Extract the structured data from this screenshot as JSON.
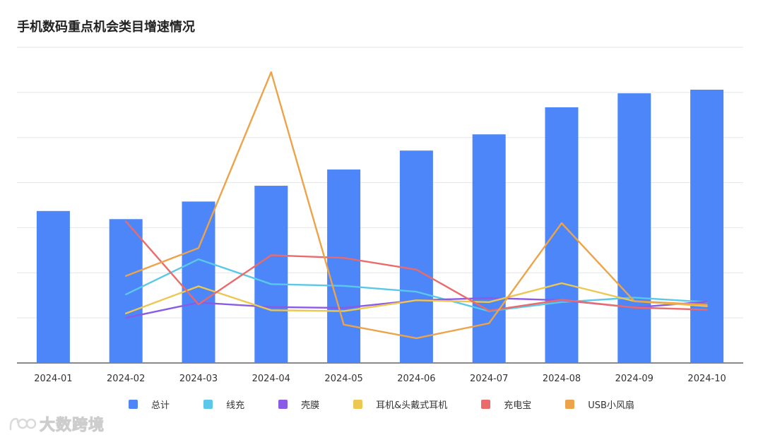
{
  "chart_data": {
    "type": "bar",
    "title": "手机数码重点机会类目增速情况",
    "categories": [
      "2024-01",
      "2024-02",
      "2024-03",
      "2024-04",
      "2024-05",
      "2024-06",
      "2024-07",
      "2024-08",
      "2024-09",
      "2024-10"
    ],
    "ylim": [
      0,
      7
    ],
    "grid": true,
    "y_tick_labels_shown": false,
    "legend_position": "bottom",
    "series": [
      {
        "name": "总计",
        "type": "bar",
        "color": "#4C86F8",
        "values": [
          3.37,
          3.19,
          3.58,
          3.93,
          4.29,
          4.71,
          5.07,
          5.67,
          5.98,
          6.06
        ]
      },
      {
        "name": "线充",
        "type": "line",
        "color": "#5BC8EA",
        "values": [
          null,
          1.52,
          2.3,
          1.75,
          1.71,
          1.58,
          1.15,
          1.35,
          1.45,
          1.35
        ]
      },
      {
        "name": "壳膜",
        "type": "line",
        "color": "#8A5CE6",
        "values": [
          null,
          1.0,
          1.34,
          1.24,
          1.22,
          1.39,
          1.44,
          1.39,
          1.23,
          1.36
        ]
      },
      {
        "name": "耳机&头戴式耳机",
        "type": "line",
        "color": "#ECC752",
        "values": [
          null,
          1.1,
          1.7,
          1.17,
          1.15,
          1.39,
          1.35,
          1.77,
          1.37,
          1.26
        ]
      },
      {
        "name": "充电宝",
        "type": "line",
        "color": "#E96B6B",
        "values": [
          null,
          3.14,
          1.3,
          2.39,
          2.33,
          2.07,
          1.16,
          1.4,
          1.23,
          1.18
        ]
      },
      {
        "name": "USB小风扇",
        "type": "line",
        "color": "#EDA349",
        "values": [
          null,
          1.93,
          2.55,
          6.45,
          0.85,
          0.55,
          0.88,
          3.1,
          1.37,
          1.29
        ]
      }
    ]
  },
  "watermark": {
    "text": "大数跨境"
  }
}
